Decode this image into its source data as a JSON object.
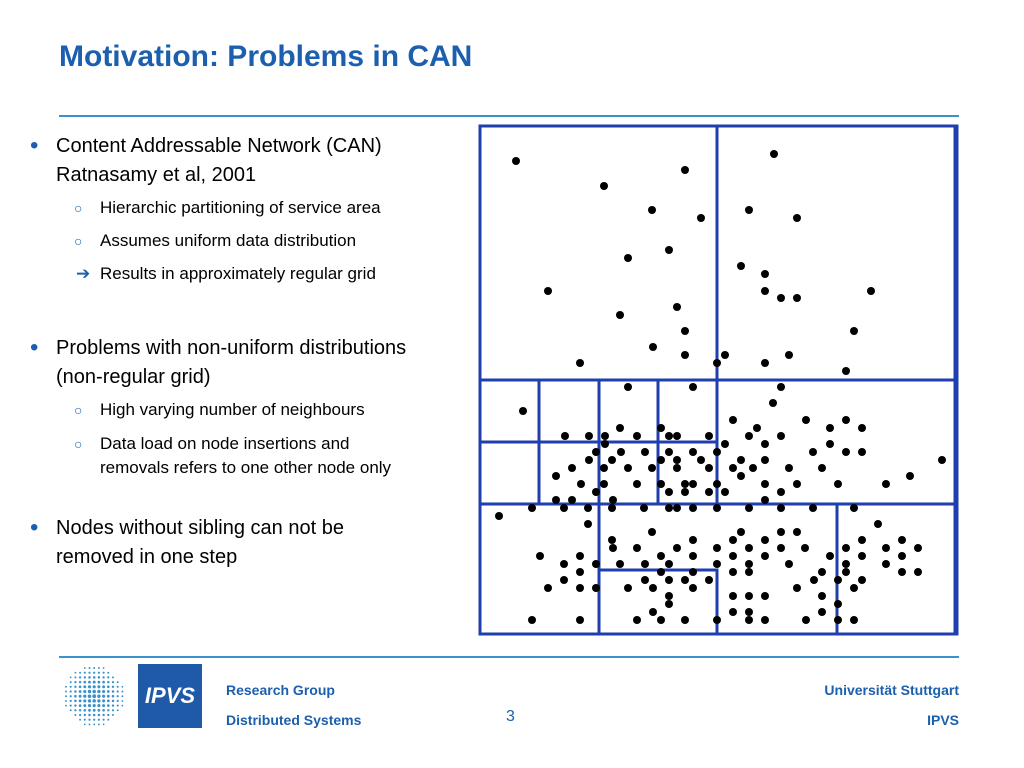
{
  "slide": {
    "title": "Motivation: Problems in CAN",
    "page_number": "3"
  },
  "bullets": [
    {
      "lines": [
        "Content Addressable Network (CAN)",
        "Ratnasamy et al, 2001"
      ],
      "sub": [
        {
          "marker": "ring",
          "text": "Hierarchic partitioning of service area"
        },
        {
          "marker": "ring",
          "text": "Assumes uniform data distribution"
        },
        {
          "marker": "arrow",
          "text": "Results in approximately regular grid"
        }
      ]
    },
    {
      "lines": [
        "Problems with non-uniform distributions",
        "(non-regular grid)"
      ],
      "sub": [
        {
          "marker": "ring",
          "text": "High varying number of neighbours"
        },
        {
          "marker": "ring",
          "text": "Data load on node insertions and",
          "text2": "removals refers to one other node only"
        }
      ]
    },
    {
      "lines": [
        "Nodes without sibling can not be",
        "removed in one step"
      ],
      "sub": []
    }
  ],
  "footer": {
    "logo_text": "IPVS",
    "left_line1": "Research Group",
    "left_line2": "Distributed Systems",
    "right_line1": "Universität Stuttgart",
    "right_line2": "IPVS"
  },
  "colors": {
    "title": "#1b5fae",
    "rule": "#3a92cc",
    "grid_lines": "#1f3fae",
    "logo_bg": "#1f5aa8"
  },
  "icons": {
    "bullet": "bullet-dot-icon",
    "sub_bullet": "ring-bullet-icon",
    "result": "right-arrow-icon"
  }
}
